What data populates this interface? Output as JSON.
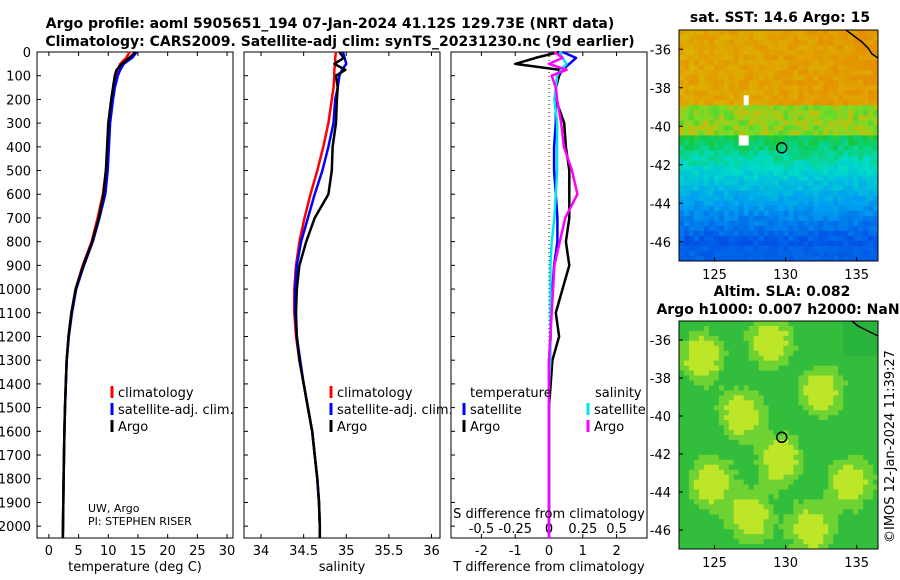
{
  "titles": {
    "line1": "Argo profile: aoml 5905651_194 07-Jan-2024 41.12S 129.73E (NRT data)",
    "line2": "Climatology: CARS2009. Satellite-adj clim: synTS_20231230.nc (9d earlier)"
  },
  "credit": {
    "institution": "UW, Argo",
    "pi": "PI: STEPHEN RISER"
  },
  "watermark": "©IMOS 12-Jan-2024 11:39:27",
  "colors": {
    "climatology": "#ff0000",
    "satellite": "#0000ff",
    "argo": "#000000",
    "sat_sal": "#00e5ee",
    "argo_sal": "#ff00ff"
  },
  "depth_ticks": [
    "0",
    "100",
    "200",
    "300",
    "400",
    "500",
    "600",
    "700",
    "800",
    "900",
    "1000",
    "1100",
    "1200",
    "1300",
    "1400",
    "1500",
    "1600",
    "1700",
    "1800",
    "1900",
    "2000"
  ],
  "chart_data": [
    {
      "type": "line",
      "id": "temperature",
      "xlabel": "temperature (deg C)",
      "ylabel": "depth",
      "xlim": [
        -2,
        31
      ],
      "ylim": [
        2050,
        0
      ],
      "xticks": [
        "0",
        "5",
        "10",
        "15",
        "20",
        "25",
        "30"
      ],
      "legend": {
        "items": [
          "climatology",
          "satellite-adj. clim.",
          "Argo"
        ],
        "placement": "lower-right"
      },
      "depths": [
        0,
        25,
        50,
        75,
        100,
        150,
        200,
        300,
        400,
        500,
        600,
        700,
        800,
        900,
        1000,
        1100,
        1200,
        1300,
        1400,
        1500,
        1600,
        1700,
        1800,
        1900,
        2000,
        2050
      ],
      "series": [
        {
          "name": "climatology",
          "values": [
            13.6,
            13.0,
            12.0,
            11.6,
            11.3,
            10.9,
            10.6,
            10.1,
            9.9,
            9.6,
            9.1,
            8.2,
            7.2,
            5.7,
            4.5,
            3.8,
            3.3,
            3.0,
            2.85,
            2.72,
            2.62,
            2.55,
            2.48,
            2.42,
            2.38,
            2.35
          ]
        },
        {
          "name": "satellite-adj. clim.",
          "values": [
            14.8,
            14.0,
            12.6,
            12.0,
            11.6,
            11.1,
            10.8,
            10.3,
            10.1,
            9.9,
            9.5,
            8.5,
            7.4,
            5.9,
            4.6,
            3.9,
            3.35,
            3.0,
            2.85,
            2.72,
            2.62,
            2.55,
            2.48,
            2.42,
            2.38,
            2.35
          ]
        },
        {
          "name": "Argo",
          "values": [
            14.6,
            13.5,
            12.3,
            11.4,
            11.1,
            10.8,
            10.5,
            10.0,
            9.8,
            9.6,
            9.2,
            8.4,
            7.3,
            5.8,
            4.5,
            3.8,
            3.3,
            3.0,
            2.85,
            2.72,
            2.62,
            2.55,
            2.48,
            2.42,
            2.38,
            2.35
          ]
        }
      ]
    },
    {
      "type": "line",
      "id": "salinity",
      "xlabel": "salinity",
      "xlim": [
        33.8,
        36.1
      ],
      "ylim": [
        2050,
        0
      ],
      "xticks": [
        "34",
        "34.5",
        "35",
        "35.5",
        "36"
      ],
      "legend": {
        "items": [
          "climatology",
          "satellite-adj. clim.",
          "Argo"
        ],
        "placement": "lower-right"
      },
      "depths": [
        0,
        25,
        50,
        75,
        100,
        150,
        200,
        300,
        400,
        500,
        600,
        700,
        800,
        900,
        1000,
        1100,
        1200,
        1300,
        1400,
        1500,
        1600,
        1700,
        1800,
        1900,
        2000,
        2050
      ],
      "series": [
        {
          "name": "climatology",
          "values": [
            34.88,
            34.87,
            34.87,
            34.86,
            34.86,
            34.85,
            34.83,
            34.79,
            34.73,
            34.66,
            34.58,
            34.51,
            34.45,
            34.41,
            34.39,
            34.39,
            34.41,
            34.45,
            34.5,
            34.55,
            34.6,
            34.63,
            34.66,
            34.68,
            34.69,
            34.69
          ]
        },
        {
          "name": "satellite-adj. clim.",
          "values": [
            34.96,
            34.98,
            35.0,
            34.95,
            34.92,
            34.9,
            34.87,
            34.85,
            34.79,
            34.72,
            34.63,
            34.55,
            34.47,
            34.42,
            34.4,
            34.4,
            34.42,
            34.46,
            34.5,
            34.55,
            34.6,
            34.63,
            34.66,
            34.68,
            34.69,
            34.69
          ]
        },
        {
          "name": "Argo",
          "values": [
            34.92,
            34.97,
            34.86,
            34.99,
            34.88,
            34.9,
            34.89,
            34.88,
            34.84,
            34.83,
            34.79,
            34.63,
            34.53,
            34.45,
            34.42,
            34.41,
            34.42,
            34.45,
            34.5,
            34.55,
            34.6,
            34.63,
            34.66,
            34.68,
            34.69,
            34.69
          ]
        }
      ]
    },
    {
      "type": "line",
      "id": "difference",
      "xlabel": "T difference from climatology",
      "top_label": "S difference from climatology",
      "xlim": [
        -2.9,
        2.9
      ],
      "ylim": [
        2050,
        0
      ],
      "xticks": [
        "-2",
        "-1",
        "0",
        "1",
        "2"
      ],
      "s_ticks": [
        "-0.5",
        "-0.25",
        "0",
        "0.25",
        "0.5"
      ],
      "legend_left": {
        "heading": "temperature",
        "items": [
          "satellite",
          "Argo"
        ]
      },
      "legend_right": {
        "heading": "salinity",
        "items": [
          "satellite",
          "Argo"
        ]
      },
      "depths": [
        0,
        25,
        50,
        75,
        100,
        150,
        200,
        300,
        400,
        500,
        600,
        700,
        800,
        900,
        1000,
        1100,
        1200,
        1300,
        1400,
        1500,
        1600,
        1700,
        1800,
        1900,
        2000,
        2050
      ],
      "series": [
        {
          "name": "T satellite",
          "values": [
            0.4,
            0.8,
            0.6,
            0.4,
            0.3,
            0.2,
            0.2,
            0.2,
            0.15,
            0.15,
            0.2,
            0.25,
            0.25,
            0.15,
            0.1,
            0.05,
            0.05,
            0,
            0,
            0,
            0,
            0,
            0,
            0,
            0,
            0
          ]
        },
        {
          "name": "T Argo",
          "values": [
            0.3,
            -0.4,
            -1.0,
            0.3,
            0.3,
            0.2,
            0.2,
            0.45,
            0.5,
            0.6,
            0.6,
            0.6,
            0.5,
            0.6,
            0.4,
            0.2,
            0.3,
            0.1,
            0.05,
            0,
            0,
            0,
            0,
            0,
            0,
            0
          ]
        },
        {
          "name": "S satellite",
          "values": [
            0.08,
            0.1,
            0.13,
            0.09,
            0.06,
            0.05,
            0.04,
            0.06,
            0.06,
            0.06,
            0.05,
            0.04,
            0.02,
            0.01,
            0.01,
            0.01,
            0.01,
            0.01,
            0,
            0,
            0,
            0,
            0,
            0,
            0,
            0
          ]
        },
        {
          "name": "S Argo",
          "values": [
            0.04,
            0.1,
            0.0,
            0.13,
            0.02,
            0.05,
            0.06,
            0.09,
            0.11,
            0.17,
            0.21,
            0.12,
            0.08,
            0.04,
            0.03,
            0.02,
            0.01,
            0,
            0,
            0,
            0,
            0,
            0,
            0,
            0,
            0
          ]
        }
      ]
    }
  ],
  "maps": {
    "sst": {
      "title": "sat. SST: 14.6 Argo: 15",
      "yticks": [
        "-36",
        "-38",
        "-40",
        "-42",
        "-44",
        "-46"
      ],
      "xticks": [
        "125",
        "130",
        "135"
      ],
      "marker": {
        "lon": 129.73,
        "lat": -41.12
      }
    },
    "sla": {
      "title1": "Altim. SLA: 0.082",
      "title2": "Argo h1000: 0.007 h2000: NaN",
      "yticks": [
        "-36",
        "-38",
        "-40",
        "-42",
        "-44",
        "-46"
      ],
      "xticks": [
        "125",
        "130",
        "135"
      ],
      "marker": {
        "lon": 129.73,
        "lat": -41.12
      }
    }
  }
}
